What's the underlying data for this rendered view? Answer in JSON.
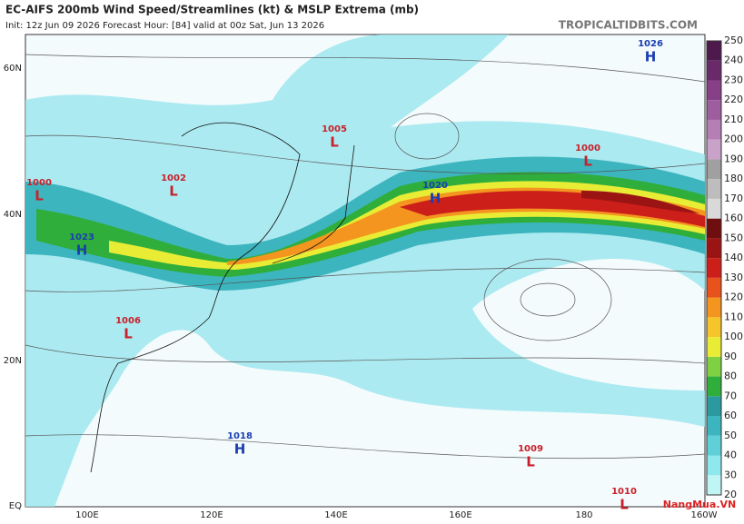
{
  "header": {
    "title": "EC-AIFS 200mb Wind Speed/Streamlines (kt) & MSLP Extrema (mb)",
    "subtitle": "Init: 12z Jun 09 2026   Forecast Hour: [84]   valid at 00z Sat, Jun 13 2026",
    "site": "TROPICALTIDBITS.COM"
  },
  "map": {
    "lat_labels": [
      "60N",
      "40N",
      "20N",
      "EQ"
    ],
    "lon_labels": [
      "100E",
      "120E",
      "140E",
      "160E",
      "180",
      "160W"
    ],
    "extrema": [
      {
        "value": "1026",
        "type": "H"
      },
      {
        "value": "1005",
        "type": "L"
      },
      {
        "value": "1000",
        "type": "L"
      },
      {
        "value": "1000",
        "type": "L"
      },
      {
        "value": "1002",
        "type": "L"
      },
      {
        "value": "1020",
        "type": "H"
      },
      {
        "value": "1023",
        "type": "H"
      },
      {
        "value": "1006",
        "type": "L"
      },
      {
        "value": "1018",
        "type": "H"
      },
      {
        "value": "1009",
        "type": "L"
      },
      {
        "value": "1010",
        "type": "L"
      }
    ]
  },
  "colorbar": {
    "labels": [
      20,
      30,
      40,
      50,
      60,
      70,
      80,
      90,
      100,
      110,
      120,
      130,
      140,
      150,
      160,
      170,
      180,
      190,
      200,
      210,
      220,
      230,
      240,
      250
    ],
    "colors": [
      "#bff5f5",
      "#8ee8ee",
      "#5fcfd8",
      "#3db5bf",
      "#2a9aa0",
      "#2fae3c",
      "#7fd043",
      "#e9ec35",
      "#f5c52a",
      "#f3951f",
      "#e8521c",
      "#cc1f1a",
      "#9b1414",
      "#6e0e0e",
      "#d9d9d9",
      "#bdbdbd",
      "#a0a0a0",
      "#c9a2c9",
      "#b57fb5",
      "#9e5d9e",
      "#874087",
      "#6a2a6a",
      "#4e1a4e"
    ]
  },
  "watermark": "NangMua.VN"
}
